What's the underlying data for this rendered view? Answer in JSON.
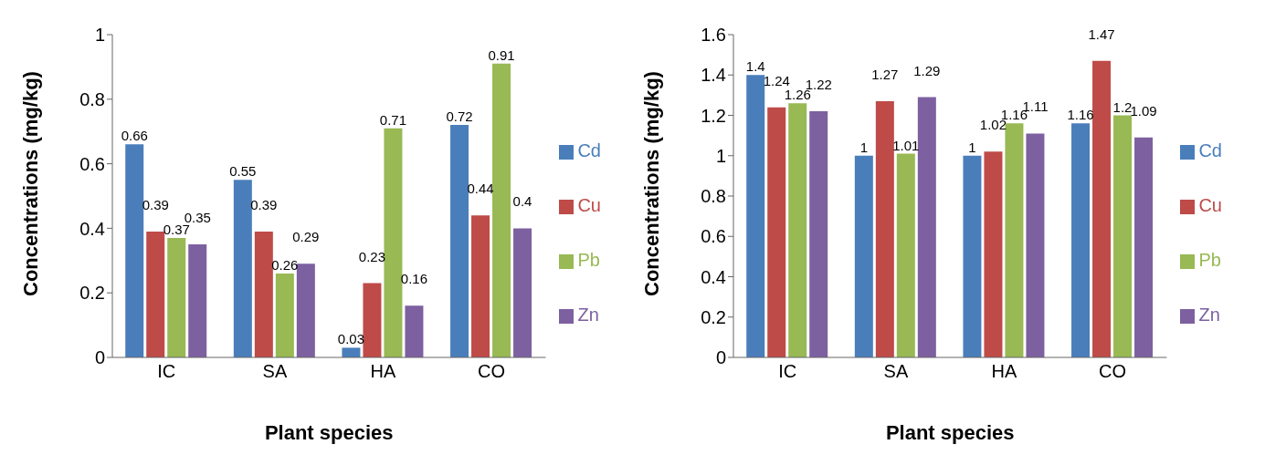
{
  "chart_data": [
    {
      "type": "bar",
      "xlabel": "Plant species",
      "ylabel": "Concentrations (mg/kg)",
      "categories": [
        "IC",
        "SA",
        "HA",
        "CO"
      ],
      "series": [
        {
          "name": "Cd",
          "color": "#4a7ebb",
          "values": [
            0.66,
            0.55,
            0.03,
            0.72
          ]
        },
        {
          "name": "Cu",
          "color": "#be4b48",
          "values": [
            0.39,
            0.39,
            0.23,
            0.44
          ]
        },
        {
          "name": "Pb",
          "color": "#98b954",
          "values": [
            0.37,
            0.26,
            0.71,
            0.91
          ]
        },
        {
          "name": "Zn",
          "color": "#7d60a0",
          "values": [
            0.35,
            0.29,
            0.16,
            0.4
          ]
        }
      ],
      "ylim": [
        0,
        1
      ],
      "yticks": [
        0,
        0.2,
        0.4,
        0.6,
        0.8,
        1
      ],
      "data_labels": true,
      "legend": "right",
      "grid": false
    },
    {
      "type": "bar",
      "xlabel": "Plant species",
      "ylabel": "Concentrations (mg/kg)",
      "categories": [
        "IC",
        "SA",
        "HA",
        "CO"
      ],
      "series": [
        {
          "name": "Cd",
          "color": "#4a7ebb",
          "values": [
            1.4,
            1,
            1,
            1.16
          ]
        },
        {
          "name": "Cu",
          "color": "#be4b48",
          "values": [
            1.24,
            1.27,
            1.02,
            1.47
          ]
        },
        {
          "name": "Pb",
          "color": "#98b954",
          "values": [
            1.26,
            1.01,
            1.16,
            1.2
          ]
        },
        {
          "name": "Zn",
          "color": "#7d60a0",
          "values": [
            1.22,
            1.29,
            1.11,
            1.09
          ]
        }
      ],
      "ylim": [
        0,
        1.6
      ],
      "yticks": [
        0,
        0.2,
        0.4,
        0.6,
        0.8,
        1,
        1.2,
        1.4,
        1.6
      ],
      "data_labels": true,
      "legend": "right",
      "grid": false
    }
  ]
}
